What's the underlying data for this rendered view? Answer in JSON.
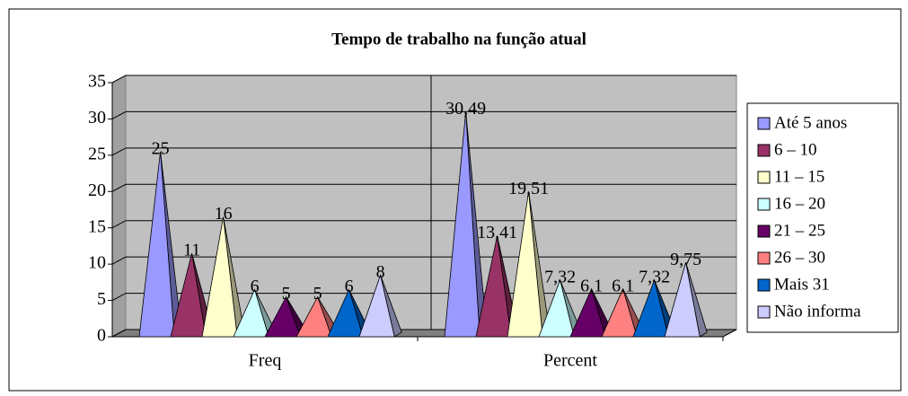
{
  "chart_data": {
    "type": "pyramid",
    "title": "Tempo de trabalho na função atual",
    "categories": [
      "Freq",
      "Percent"
    ],
    "series": [
      {
        "name": "Até 5 anos",
        "color": "#9999ff",
        "values": [
          25,
          30.49
        ],
        "value_labels": [
          "25",
          "30,49"
        ]
      },
      {
        "name": "6 – 10",
        "color": "#993366",
        "values": [
          11,
          13.41
        ],
        "value_labels": [
          "11",
          "13,41"
        ]
      },
      {
        "name": "11 – 15",
        "color": "#ffffcc",
        "values": [
          16,
          19.51
        ],
        "value_labels": [
          "16",
          "19,51"
        ]
      },
      {
        "name": "16 – 20",
        "color": "#ccffff",
        "values": [
          6,
          7.32
        ],
        "value_labels": [
          "6",
          "7,32"
        ]
      },
      {
        "name": "21 – 25",
        "color": "#660066",
        "values": [
          5,
          6.1
        ],
        "value_labels": [
          "5",
          "6,1"
        ]
      },
      {
        "name": "26 – 30",
        "color": "#ff8080",
        "values": [
          5,
          6.1
        ],
        "value_labels": [
          "5",
          "6,1"
        ]
      },
      {
        "name": "Mais 31",
        "color": "#0066cc",
        "values": [
          6,
          7.32
        ],
        "value_labels": [
          "6",
          "7,32"
        ]
      },
      {
        "name": "Não informa",
        "color": "#ccccff",
        "values": [
          8,
          9.75
        ],
        "value_labels": [
          "8",
          "9,75"
        ]
      }
    ],
    "ylim": [
      0,
      35
    ],
    "yticks": [
      0,
      5,
      10,
      15,
      20,
      25,
      30,
      35
    ],
    "grid": true,
    "legend": "right"
  }
}
